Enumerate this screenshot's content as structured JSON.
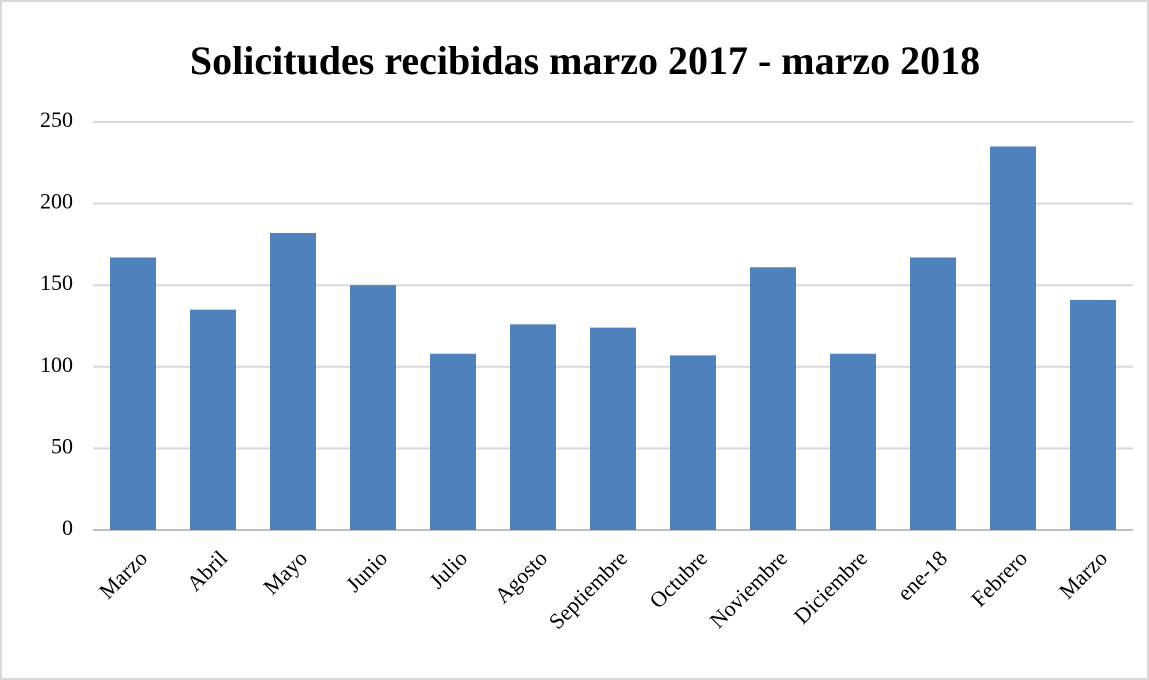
{
  "chart_data": {
    "type": "bar",
    "title": "Solicitudes recibidas marzo 2017 - marzo 2018",
    "categories": [
      "Marzo",
      "Abril",
      "Mayo",
      "Junio",
      "Julio",
      "Agosto",
      "Septiembre",
      "Octubre",
      "Noviembre",
      "Diciembre",
      "ene-18",
      "Febrero",
      "Marzo"
    ],
    "values": [
      167,
      135,
      182,
      150,
      108,
      126,
      124,
      107,
      161,
      108,
      167,
      235,
      141
    ],
    "color": "#4f81bd",
    "ylim": [
      0,
      250
    ],
    "yticks": [
      0,
      50,
      100,
      150,
      200,
      250
    ],
    "grid": true
  }
}
